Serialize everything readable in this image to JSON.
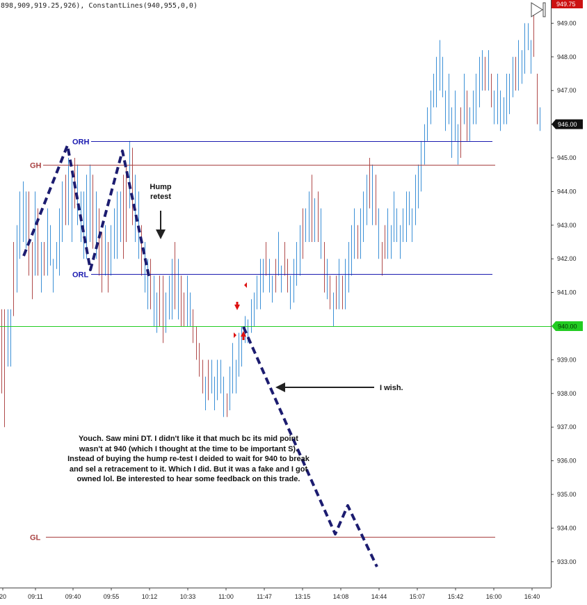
{
  "header_text": "898,909,919.25,926), ConstantLines(940,955,0,0)",
  "colors": {
    "up": "#3a8fd6",
    "down": "#b04a4a",
    "or_line": "#1a1ab0",
    "g_line": "#a84040",
    "const_line": "#22cc22",
    "dash": "#1c1c70",
    "last_price_bg": "#111111",
    "top_price_bg": "#cc1111",
    "const_price_bg": "#22cc22"
  },
  "price_tags": {
    "top": "949.75",
    "last": "946.00",
    "const": "940.00"
  },
  "annotations": {
    "hump_retest": [
      "Hump",
      "retest"
    ],
    "i_wish": "I wish.",
    "note": "Youch. Saw mini DT. I didn't like it  that much bc its mid point wasn't at 940 (which I thought at the time to be important S). Instead of buying the hump re-test I deided to wait for 940 to break and sel a retracement to it. Which I did. But it was a fake and I got owned lol. Be interested to hear some feedback on this trade."
  },
  "chart_data": {
    "type": "bar",
    "subtype": "ohlc-price-bars",
    "ylim": [
      932.5,
      950.0
    ],
    "y_ticks": [
      "949.00",
      "948.00",
      "947.00",
      "946.00",
      "945.00",
      "944.00",
      "943.00",
      "942.00",
      "941.00",
      "940.00",
      "939.00",
      "938.00",
      "937.00",
      "936.00",
      "935.00",
      "934.00",
      "933.00"
    ],
    "x_ticks": [
      "20",
      "09:11",
      "09:40",
      "09:55",
      "10:12",
      "10:33",
      "11:00",
      "11:47",
      "13:15",
      "14:08",
      "14:44",
      "15:07",
      "15:42",
      "16:00",
      "16:40"
    ],
    "levels": [
      {
        "label": "ORH",
        "value": 945.5
      },
      {
        "label": "GH",
        "value": 944.8
      },
      {
        "label": "ORL",
        "value": 941.55
      },
      {
        "label": "GL",
        "value": 933.75
      },
      {
        "label": "",
        "value": 940.0
      }
    ],
    "bars": [
      [
        940.5,
        938.0,
        "d"
      ],
      [
        940.5,
        937.0,
        "d"
      ],
      [
        940.5,
        938.8,
        "u"
      ],
      [
        940.5,
        938.8,
        "u"
      ],
      [
        942.5,
        940.3,
        "d"
      ],
      [
        943.0,
        941.0,
        "u"
      ],
      [
        944.0,
        942.0,
        "u"
      ],
      [
        944.3,
        942.5,
        "u"
      ],
      [
        944.0,
        942.3,
        "u"
      ],
      [
        944.0,
        941.5,
        "d"
      ],
      [
        942.5,
        940.8,
        "d"
      ],
      [
        944.0,
        941.5,
        "u"
      ],
      [
        943.5,
        941.5,
        "d"
      ],
      [
        942.5,
        941.0,
        "u"
      ],
      [
        942.5,
        941.5,
        "d"
      ],
      [
        943.5,
        941.5,
        "u"
      ],
      [
        943.0,
        941.8,
        "u"
      ],
      [
        942.0,
        941.0,
        "u"
      ],
      [
        942.5,
        941.7,
        "u"
      ],
      [
        943.5,
        941.5,
        "u"
      ],
      [
        944.3,
        942.5,
        "u"
      ],
      [
        944.5,
        943.0,
        "d"
      ],
      [
        945.0,
        943.0,
        "u"
      ],
      [
        944.5,
        942.5,
        "u"
      ],
      [
        945.0,
        943.5,
        "d"
      ],
      [
        944.8,
        943.0,
        "u"
      ],
      [
        944.0,
        942.5,
        "u"
      ],
      [
        944.0,
        942.0,
        "u"
      ],
      [
        944.5,
        942.0,
        "u"
      ],
      [
        944.8,
        942.5,
        "u"
      ],
      [
        944.5,
        942.3,
        "d"
      ],
      [
        944.0,
        942.0,
        "u"
      ],
      [
        943.5,
        941.5,
        "d"
      ],
      [
        942.8,
        941.0,
        "d"
      ],
      [
        943.0,
        941.5,
        "u"
      ],
      [
        942.5,
        941.0,
        "d"
      ],
      [
        943.0,
        941.5,
        "u"
      ],
      [
        943.5,
        942.0,
        "u"
      ],
      [
        944.0,
        942.0,
        "u"
      ],
      [
        944.0,
        942.5,
        "u"
      ],
      [
        944.5,
        942.0,
        "d"
      ],
      [
        944.8,
        942.5,
        "d"
      ],
      [
        945.5,
        943.5,
        "u"
      ],
      [
        945.3,
        943.0,
        "d"
      ],
      [
        944.5,
        942.5,
        "u"
      ],
      [
        944.0,
        942.0,
        "u"
      ],
      [
        943.0,
        941.5,
        "d"
      ],
      [
        942.5,
        941.0,
        "u"
      ],
      [
        942.0,
        940.5,
        "u"
      ],
      [
        942.0,
        940.5,
        "d"
      ],
      [
        941.5,
        940.0,
        "u"
      ],
      [
        941.0,
        939.8,
        "u"
      ],
      [
        941.5,
        940.0,
        "d"
      ],
      [
        941.5,
        939.5,
        "d"
      ],
      [
        941.0,
        939.8,
        "u"
      ],
      [
        941.5,
        940.2,
        "u"
      ],
      [
        942.0,
        940.2,
        "u"
      ],
      [
        942.5,
        940.5,
        "d"
      ],
      [
        942.0,
        940.2,
        "u"
      ],
      [
        941.5,
        940.0,
        "d"
      ],
      [
        941.0,
        940.0,
        "d"
      ],
      [
        941.5,
        940.0,
        "u"
      ],
      [
        941.0,
        940.0,
        "u"
      ],
      [
        940.5,
        939.5,
        "d"
      ],
      [
        940.0,
        939.0,
        "d"
      ],
      [
        939.5,
        938.5,
        "d"
      ],
      [
        939.0,
        938.0,
        "d"
      ],
      [
        938.5,
        937.5,
        "u"
      ],
      [
        939.0,
        937.8,
        "d"
      ],
      [
        939.0,
        938.0,
        "u"
      ],
      [
        938.5,
        937.5,
        "u"
      ],
      [
        939.0,
        937.8,
        "u"
      ],
      [
        939.0,
        938.0,
        "u"
      ],
      [
        938.5,
        937.3,
        "u"
      ],
      [
        938.0,
        937.3,
        "d"
      ],
      [
        938.8,
        937.5,
        "u"
      ],
      [
        939.5,
        938.0,
        "u"
      ],
      [
        939.0,
        938.0,
        "u"
      ],
      [
        939.8,
        938.5,
        "u"
      ],
      [
        940.0,
        938.8,
        "u"
      ],
      [
        940.3,
        939.5,
        "u"
      ],
      [
        940.2,
        939.5,
        "u"
      ],
      [
        940.8,
        939.8,
        "u"
      ],
      [
        941.0,
        940.0,
        "u"
      ],
      [
        941.5,
        940.5,
        "u"
      ],
      [
        942.0,
        940.5,
        "u"
      ],
      [
        942.0,
        941.0,
        "u"
      ],
      [
        942.5,
        941.5,
        "d"
      ],
      [
        942.0,
        941.0,
        "u"
      ],
      [
        941.5,
        940.7,
        "u"
      ],
      [
        942.0,
        941.0,
        "d"
      ],
      [
        942.8,
        941.5,
        "u"
      ],
      [
        941.8,
        941.0,
        "u"
      ],
      [
        942.5,
        941.5,
        "d"
      ],
      [
        942.0,
        941.0,
        "d"
      ],
      [
        941.5,
        940.5,
        "u"
      ],
      [
        942.0,
        940.7,
        "u"
      ],
      [
        942.5,
        941.2,
        "u"
      ],
      [
        943.0,
        941.5,
        "u"
      ],
      [
        943.5,
        942.0,
        "d"
      ],
      [
        943.5,
        942.5,
        "u"
      ],
      [
        944.0,
        942.5,
        "u"
      ],
      [
        944.5,
        942.5,
        "d"
      ],
      [
        943.8,
        942.5,
        "u"
      ],
      [
        944.0,
        942.5,
        "d"
      ],
      [
        943.5,
        942.0,
        "u"
      ],
      [
        942.5,
        941.0,
        "d"
      ],
      [
        942.0,
        940.8,
        "u"
      ],
      [
        941.5,
        940.5,
        "d"
      ],
      [
        941.0,
        940.0,
        "u"
      ],
      [
        941.5,
        940.5,
        "d"
      ],
      [
        942.0,
        940.5,
        "u"
      ],
      [
        941.5,
        940.5,
        "d"
      ],
      [
        942.0,
        940.5,
        "u"
      ],
      [
        942.5,
        941.0,
        "u"
      ],
      [
        943.0,
        941.5,
        "u"
      ],
      [
        943.5,
        942.0,
        "u"
      ],
      [
        943.0,
        942.0,
        "d"
      ],
      [
        943.5,
        942.0,
        "u"
      ],
      [
        944.0,
        942.5,
        "u"
      ],
      [
        944.5,
        943.0,
        "u"
      ],
      [
        945.0,
        943.5,
        "d"
      ],
      [
        944.8,
        943.0,
        "u"
      ],
      [
        944.5,
        943.0,
        "d"
      ],
      [
        943.5,
        942.0,
        "u"
      ],
      [
        942.5,
        941.5,
        "d"
      ],
      [
        943.0,
        942.0,
        "d"
      ],
      [
        943.5,
        942.0,
        "u"
      ],
      [
        943.0,
        942.0,
        "u"
      ],
      [
        944.0,
        942.5,
        "u"
      ],
      [
        943.5,
        942.5,
        "u"
      ],
      [
        943.0,
        942.0,
        "u"
      ],
      [
        943.5,
        942.5,
        "u"
      ],
      [
        944.0,
        942.5,
        "u"
      ],
      [
        944.0,
        943.0,
        "u"
      ],
      [
        943.5,
        942.5,
        "u"
      ],
      [
        944.5,
        943.0,
        "u"
      ],
      [
        944.8,
        943.5,
        "u"
      ],
      [
        945.5,
        944.0,
        "u"
      ],
      [
        946.0,
        944.8,
        "u"
      ],
      [
        946.5,
        945.5,
        "u"
      ],
      [
        947.0,
        946.0,
        "u"
      ],
      [
        947.5,
        946.5,
        "u"
      ],
      [
        948.0,
        946.5,
        "u"
      ],
      [
        948.5,
        947.0,
        "u"
      ],
      [
        948.0,
        946.8,
        "u"
      ],
      [
        947.0,
        945.8,
        "u"
      ],
      [
        947.5,
        946.0,
        "u"
      ],
      [
        946.5,
        945.0,
        "u"
      ],
      [
        947.0,
        945.5,
        "u"
      ],
      [
        946.0,
        944.8,
        "u"
      ],
      [
        946.5,
        945.0,
        "d"
      ],
      [
        947.5,
        946.0,
        "u"
      ],
      [
        947.0,
        945.5,
        "d"
      ],
      [
        946.5,
        945.5,
        "u"
      ],
      [
        947.0,
        946.0,
        "u"
      ],
      [
        947.5,
        946.0,
        "u"
      ],
      [
        948.0,
        946.5,
        "u"
      ],
      [
        948.2,
        947.0,
        "u"
      ],
      [
        948.0,
        947.0,
        "d"
      ],
      [
        948.2,
        947.0,
        "u"
      ],
      [
        947.5,
        946.5,
        "d"
      ],
      [
        947.0,
        946.0,
        "u"
      ],
      [
        947.5,
        946.0,
        "u"
      ],
      [
        947.0,
        945.8,
        "u"
      ],
      [
        946.8,
        946.0,
        "u"
      ],
      [
        947.5,
        946.0,
        "u"
      ],
      [
        947.5,
        946.3,
        "u"
      ],
      [
        948.0,
        946.8,
        "u"
      ],
      [
        948.0,
        947.0,
        "d"
      ],
      [
        948.5,
        947.0,
        "u"
      ],
      [
        948.2,
        947.2,
        "u"
      ],
      [
        949.0,
        947.5,
        "u"
      ],
      [
        949.0,
        948.2,
        "u"
      ],
      [
        948.5,
        947.5,
        "u"
      ],
      [
        949.3,
        948.0,
        "d"
      ],
      [
        947.5,
        946.0,
        "d"
      ],
      [
        946.5,
        945.8,
        "u"
      ]
    ]
  }
}
